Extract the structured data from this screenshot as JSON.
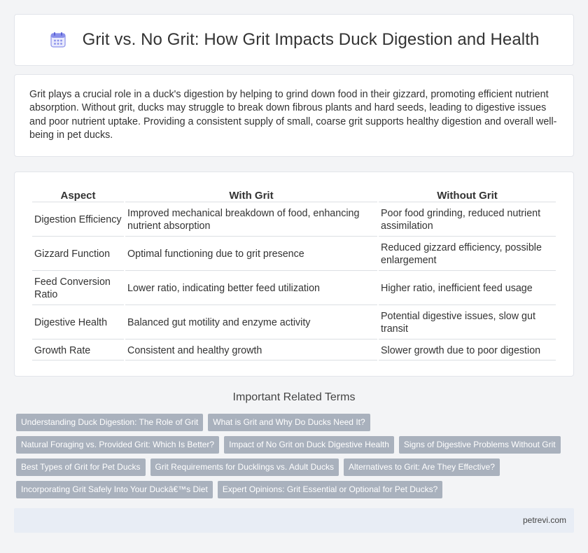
{
  "header": {
    "title": "Grit vs. No Grit: How Grit Impacts Duck Digestion and Health",
    "icon": "calendar-icon"
  },
  "intro": "Grit plays a crucial role in a duck's digestion by helping to grind down food in their gizzard, promoting efficient nutrient absorption. Without grit, ducks may struggle to break down fibrous plants and hard seeds, leading to digestive issues and poor nutrient uptake. Providing a consistent supply of small, coarse grit supports healthy digestion and overall well-being in pet ducks.",
  "table": {
    "headers": [
      "Aspect",
      "With Grit",
      "Without Grit"
    ],
    "rows": [
      [
        "Digestion Efficiency",
        "Improved mechanical breakdown of food, enhancing nutrient absorption",
        "Poor food grinding, reduced nutrient assimilation"
      ],
      [
        "Gizzard Function",
        "Optimal functioning due to grit presence",
        "Reduced gizzard efficiency, possible enlargement"
      ],
      [
        "Feed Conversion Ratio",
        "Lower ratio, indicating better feed utilization",
        "Higher ratio, inefficient feed usage"
      ],
      [
        "Digestive Health",
        "Balanced gut motility and enzyme activity",
        "Potential digestive issues, slow gut transit"
      ],
      [
        "Growth Rate",
        "Consistent and healthy growth",
        "Slower growth due to poor digestion"
      ]
    ]
  },
  "related": {
    "title": "Important Related Terms",
    "tags": [
      "Understanding Duck Digestion: The Role of Grit",
      "What is Grit and Why Do Ducks Need It?",
      "Natural Foraging vs. Provided Grit: Which Is Better?",
      "Impact of No Grit on Duck Digestive Health",
      "Signs of Digestive Problems Without Grit",
      "Best Types of Grit for Pet Ducks",
      "Grit Requirements for Ducklings vs. Adult Ducks",
      "Alternatives to Grit: Are They Effective?",
      "Incorporating Grit Safely Into Your Duckâ€™s Diet",
      "Expert Opinions: Grit Essential or Optional for Pet Ducks?"
    ]
  },
  "footer": {
    "site": "petrevi.com"
  },
  "colors": {
    "tag_bg": "#a9b1bd",
    "footer_bg": "#e8edf5",
    "icon_accent": "#7c83e8"
  }
}
